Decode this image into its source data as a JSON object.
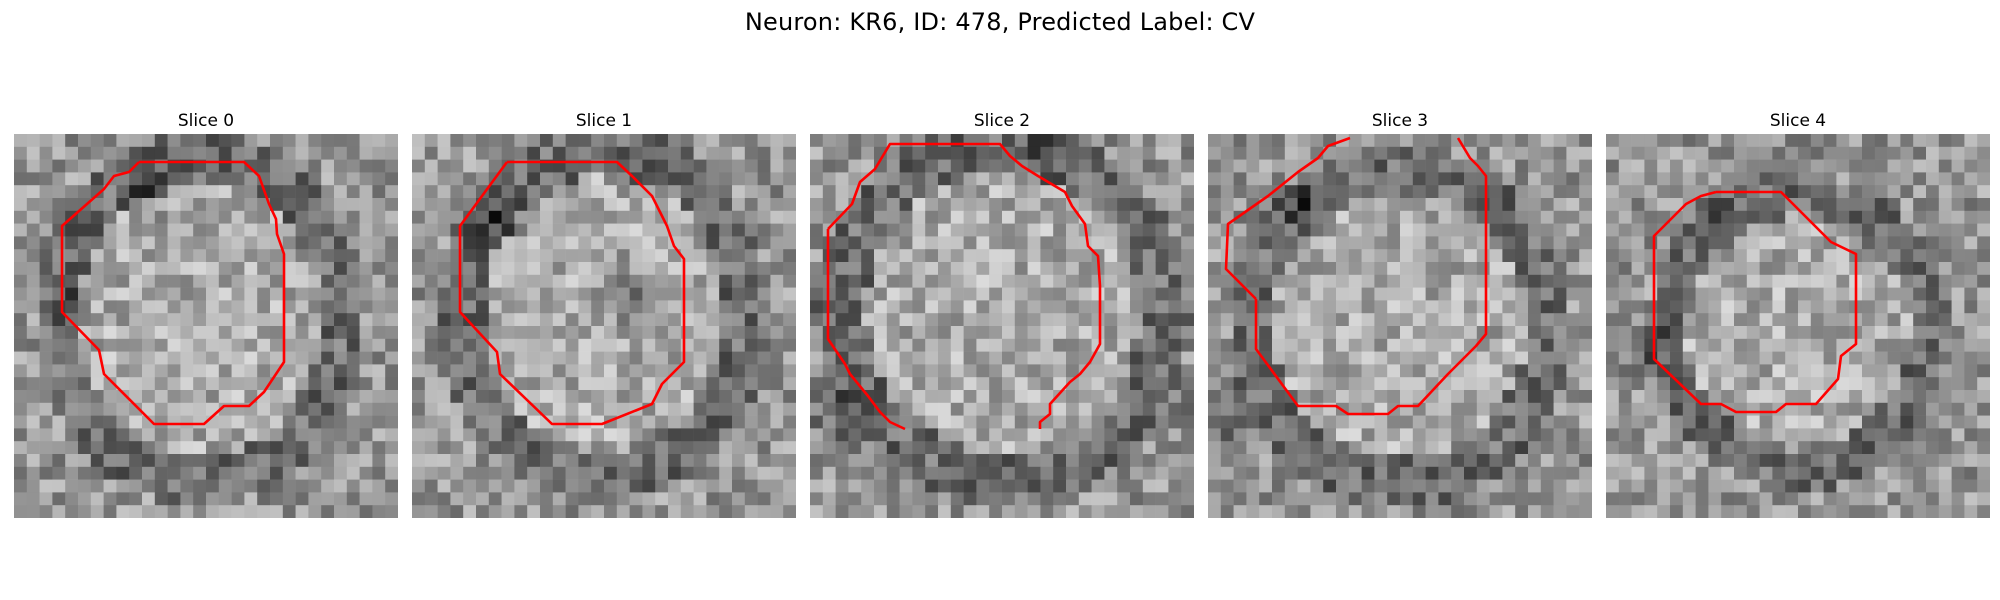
{
  "figure": {
    "title": "Neuron: KR6, ID: 478, Predicted Label: CV"
  },
  "panels": [
    {
      "title": "Slice 0"
    },
    {
      "title": "Slice 1"
    },
    {
      "title": "Slice 2"
    },
    {
      "title": "Slice 3"
    },
    {
      "title": "Slice 4"
    }
  ],
  "style": {
    "contour_color": "#ff0000",
    "image_colormap": "gray"
  }
}
